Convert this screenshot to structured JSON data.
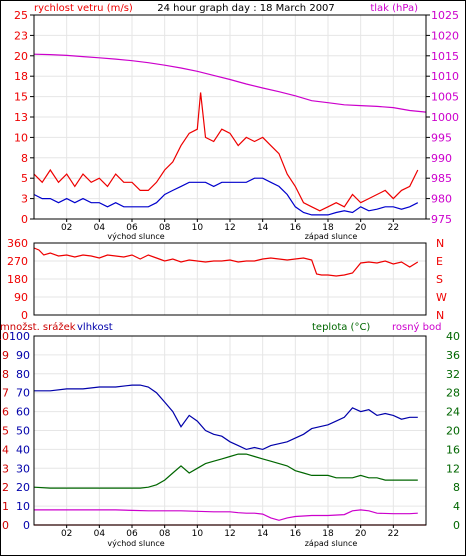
{
  "chart_data": [
    {
      "type": "line",
      "title": "24 hour graph day : 18 March 2007",
      "left_label": "rychlost vetru (m/s)",
      "right_label": "tlak (hPa)",
      "ylim_left": [
        0,
        25
      ],
      "ylim_right": [
        975,
        1025
      ],
      "yticks_left": [
        "0",
        "3",
        "5",
        "8",
        "10",
        "13",
        "15",
        "18",
        "20",
        "23",
        "25"
      ],
      "yticks_right": [
        "975",
        "980",
        "985",
        "990",
        "995",
        "1000",
        "1005",
        "1010",
        "1015",
        "1020",
        "1025"
      ],
      "xlim": [
        0,
        24
      ],
      "xticks": [
        "02",
        "04",
        "06",
        "08",
        "10",
        "12",
        "14",
        "16",
        "18",
        "20",
        "22"
      ],
      "sunrise_label": "východ slunce",
      "sunrise_hour": 6,
      "sunset_label": "západ slunce",
      "sunset_hour": 18,
      "series": [
        {
          "axis": "left",
          "color": "#ee0000",
          "x": [
            0,
            0.5,
            1,
            1.5,
            2,
            2.5,
            3,
            3.5,
            4,
            4.5,
            5,
            5.5,
            6,
            6.5,
            7,
            7.5,
            8,
            8.5,
            9,
            9.5,
            10,
            10.2,
            10.5,
            11,
            11.5,
            12,
            12.5,
            13,
            13.5,
            14,
            14.5,
            15,
            15.5,
            16,
            16.5,
            17,
            17.5,
            18,
            18.5,
            19,
            19.5,
            20,
            20.5,
            21,
            21.5,
            22,
            22.5,
            23,
            23.5
          ],
          "values": [
            5.5,
            4.5,
            6,
            4.5,
            5.5,
            4,
            5.5,
            4.5,
            5,
            4,
            5.5,
            4.5,
            4.5,
            3.5,
            3.5,
            4.5,
            6,
            7,
            9,
            10.5,
            11,
            15.5,
            10,
            9.5,
            11,
            10.5,
            9,
            10,
            9.5,
            10,
            9,
            8,
            5.5,
            4,
            2,
            1.5,
            1,
            1.5,
            2,
            1.5,
            3,
            2,
            2.5,
            3,
            3.5,
            2.5,
            3.5,
            4,
            6
          ]
        },
        {
          "axis": "left",
          "color": "#0000cc",
          "x": [
            0,
            0.5,
            1,
            1.5,
            2,
            2.5,
            3,
            3.5,
            4,
            4.5,
            5,
            5.5,
            6,
            6.5,
            7,
            7.5,
            8,
            8.5,
            9,
            9.5,
            10,
            10.5,
            11,
            11.5,
            12,
            12.5,
            13,
            13.5,
            14,
            14.5,
            15,
            15.5,
            16,
            16.5,
            17,
            17.5,
            18,
            18.5,
            19,
            19.5,
            20,
            20.5,
            21,
            21.5,
            22,
            22.5,
            23,
            23.5
          ],
          "values": [
            3,
            2.5,
            2.5,
            2,
            2.5,
            2,
            2.5,
            2,
            2,
            1.5,
            2,
            1.5,
            1.5,
            1.5,
            1.5,
            2,
            3,
            3.5,
            4,
            4.5,
            4.5,
            4.5,
            4,
            4.5,
            4.5,
            4.5,
            4.5,
            5,
            5,
            4.5,
            4,
            3,
            1.5,
            0.8,
            0.5,
            0.5,
            0.5,
            0.8,
            1,
            0.8,
            1.5,
            1,
            1.2,
            1.5,
            1.5,
            1.2,
            1.5,
            2
          ]
        },
        {
          "axis": "right",
          "color": "#cc00cc",
          "x": [
            0,
            1,
            2,
            3,
            4,
            5,
            6,
            7,
            8,
            9,
            10,
            11,
            12,
            13,
            14,
            15,
            16,
            17,
            18,
            19,
            20,
            21,
            22,
            23,
            24
          ],
          "values": [
            1015.4,
            1015.3,
            1015.1,
            1014.8,
            1014.5,
            1014.2,
            1013.8,
            1013.3,
            1012.7,
            1012,
            1011.2,
            1010.2,
            1009.2,
            1008.1,
            1007.1,
            1006.2,
            1005.2,
            1004,
            1003.5,
            1003,
            1002.8,
            1002.6,
            1002.3,
            1001.6,
            1001.2
          ]
        }
      ]
    },
    {
      "type": "line",
      "left_label_ticks": [
        "0",
        "90",
        "180",
        "270",
        "360"
      ],
      "right_label_ticks": [
        "N",
        "W",
        "S",
        "E",
        "N"
      ],
      "ylim": [
        0,
        360
      ],
      "xlim": [
        0,
        24
      ],
      "series": [
        {
          "color": "#ee0000",
          "x": [
            0,
            0.3,
            0.6,
            1,
            1.5,
            2,
            2.5,
            3,
            3.5,
            4,
            4.5,
            5,
            5.5,
            6,
            6.5,
            7,
            7.5,
            8,
            8.5,
            9,
            9.5,
            10,
            10.5,
            11,
            11.5,
            12,
            12.5,
            13,
            13.5,
            14,
            14.5,
            15,
            15.5,
            16,
            16.5,
            17,
            17.3,
            17.6,
            18,
            18.5,
            19,
            19.5,
            20,
            20.5,
            21,
            21.5,
            22,
            22.5,
            23,
            23.5
          ],
          "values": [
            335,
            325,
            300,
            310,
            295,
            300,
            290,
            300,
            295,
            285,
            300,
            295,
            290,
            300,
            280,
            300,
            285,
            270,
            280,
            265,
            275,
            270,
            265,
            270,
            270,
            275,
            265,
            270,
            270,
            280,
            285,
            280,
            275,
            280,
            285,
            275,
            205,
            200,
            200,
            195,
            200,
            210,
            260,
            265,
            260,
            270,
            255,
            265,
            240,
            265
          ]
        }
      ]
    },
    {
      "type": "line",
      "left_labels": [
        "množst. srážek",
        "vlhkost"
      ],
      "right_labels": [
        "teplota (°C)",
        "rosný bod"
      ],
      "yticks_precip": [
        "0",
        "1",
        "2",
        "3",
        "4",
        "5",
        "6",
        "7",
        "8",
        "9",
        "10"
      ],
      "yticks_humidity": [
        "0",
        "10",
        "20",
        "30",
        "40",
        "50",
        "60",
        "70",
        "80",
        "90",
        "100"
      ],
      "yticks_temp": [
        "0",
        "4",
        "8",
        "12",
        "16",
        "20",
        "24",
        "28",
        "32",
        "36",
        "40"
      ],
      "ylim_humidity": [
        0,
        100
      ],
      "ylim_temp": [
        0,
        40
      ],
      "xlim": [
        0,
        24
      ],
      "xticks": [
        "02",
        "04",
        "06",
        "08",
        "10",
        "12",
        "14",
        "16",
        "18",
        "20",
        "22"
      ],
      "sunrise_label": "východ slunce",
      "sunset_label": "západ slunce",
      "series": [
        {
          "axis": "humidity",
          "color": "#0000aa",
          "x": [
            0,
            1,
            2,
            3,
            4,
            5,
            6,
            6.5,
            7,
            7.5,
            8,
            8.5,
            9,
            9.5,
            10,
            10.5,
            11,
            11.5,
            12,
            12.5,
            13,
            13.5,
            14,
            14.5,
            15,
            15.5,
            16,
            16.5,
            17,
            17.5,
            18,
            18.5,
            19,
            19.5,
            20,
            20.5,
            21,
            21.5,
            22,
            22.5,
            23,
            23.5
          ],
          "values": [
            71,
            71,
            72,
            72,
            73,
            73,
            74,
            74,
            73,
            70,
            65,
            60,
            52,
            58,
            55,
            50,
            48,
            47,
            44,
            42,
            40,
            41,
            40,
            42,
            43,
            44,
            46,
            48,
            51,
            52,
            53,
            55,
            57,
            62,
            60,
            61,
            58,
            59,
            58,
            56,
            57,
            57
          ]
        },
        {
          "axis": "temp",
          "color": "#006600",
          "x": [
            0,
            1,
            2,
            3,
            4,
            5,
            6,
            6.5,
            7,
            7.5,
            8,
            8.5,
            9,
            9.5,
            10,
            10.5,
            11,
            11.5,
            12,
            12.5,
            13,
            13.5,
            14,
            14.5,
            15,
            15.5,
            16,
            16.5,
            17,
            17.5,
            18,
            18.5,
            19,
            19.5,
            20,
            20.5,
            21,
            21.5,
            22,
            22.5,
            23,
            23.5
          ],
          "values": [
            8,
            7.8,
            7.8,
            7.8,
            7.8,
            7.8,
            7.8,
            7.8,
            8,
            8.5,
            9.5,
            11,
            12.5,
            11,
            12,
            13,
            13.5,
            14,
            14.5,
            15,
            15,
            14.5,
            14,
            13.5,
            13,
            12.5,
            11.5,
            11,
            10.5,
            10.5,
            10.5,
            10,
            10,
            10,
            10.5,
            10,
            10,
            9.5,
            9.5,
            9.5,
            9.5,
            9.5
          ]
        },
        {
          "axis": "temp",
          "color": "#cc00cc",
          "x": [
            0,
            1,
            2,
            3,
            4,
            5,
            6,
            7,
            8,
            9,
            10,
            11,
            12,
            12.5,
            13,
            13.5,
            14,
            14.5,
            15,
            15.5,
            16,
            17,
            18,
            19,
            19.5,
            20,
            20.5,
            21,
            22,
            23,
            23.5
          ],
          "values": [
            3.2,
            3.2,
            3.2,
            3.2,
            3.2,
            3.2,
            3.1,
            3,
            3,
            3,
            2.9,
            2.8,
            2.8,
            2.6,
            2.5,
            2.5,
            2.3,
            1.5,
            1,
            1.5,
            1.8,
            2,
            2,
            2.2,
            3,
            3.2,
            3,
            2.5,
            2.4,
            2.4,
            2.5
          ]
        },
        {
          "axis": "precip",
          "color": "#cc0000",
          "x": [
            0,
            24
          ],
          "values": [
            0,
            0
          ]
        }
      ]
    }
  ]
}
